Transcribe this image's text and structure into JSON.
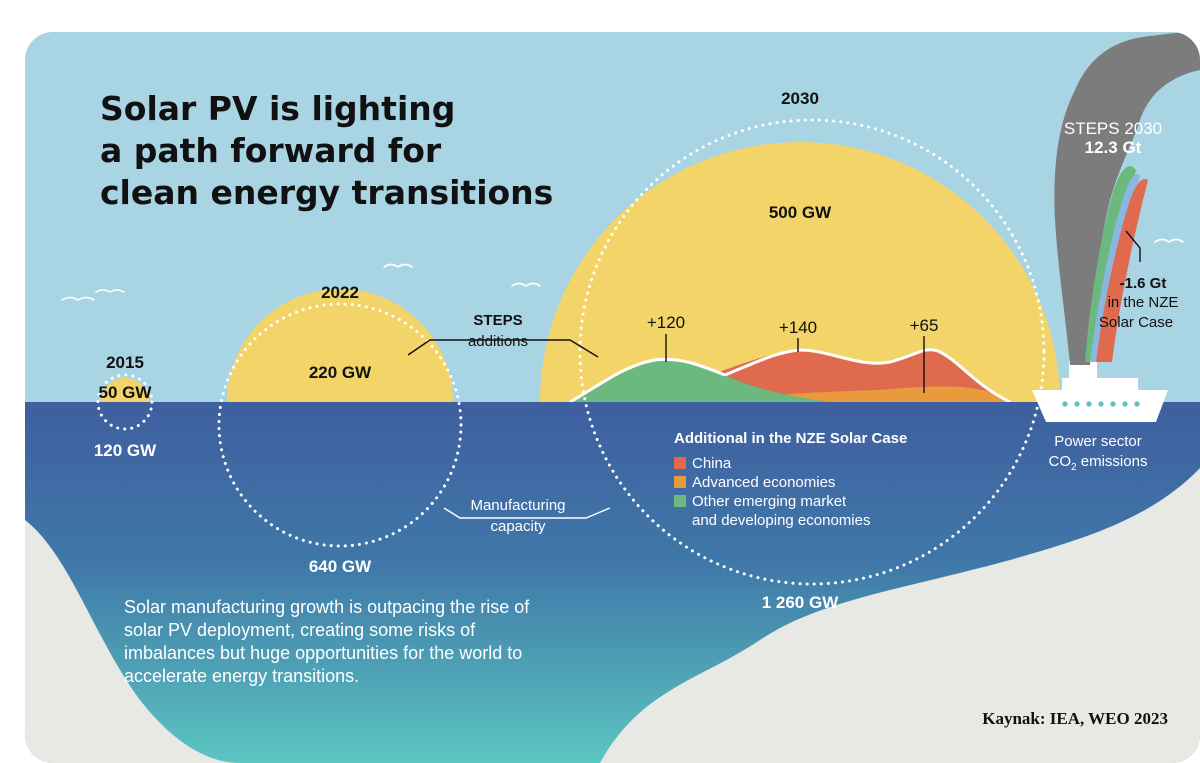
{
  "title": {
    "line1": "Solar PV is lighting",
    "line2": "a path forward for",
    "line3": "clean energy transitions"
  },
  "years": {
    "y2015": {
      "label": "2015",
      "deployment": "50 GW",
      "manufacturing": "120 GW"
    },
    "y2022": {
      "label": "2022",
      "deployment": "220 GW",
      "manufacturing": "640 GW"
    },
    "y2030": {
      "label": "2030",
      "deployment": "500 GW",
      "manufacturing": "1 260 GW",
      "additions": {
        "other_emerging": "+120",
        "china": "+140",
        "advanced": "+65"
      }
    }
  },
  "annotations": {
    "steps_line1": "STEPS",
    "steps_line2": "additions",
    "manufacturing_line1": "Manufacturing",
    "manufacturing_line2": "capacity"
  },
  "legend": {
    "title": "Additional in the NZE Solar Case",
    "items": [
      {
        "label": "China",
        "color": "#E06A4E"
      },
      {
        "label": "Advanced economies",
        "color": "#E89A3C"
      },
      {
        "label": "Other emerging market",
        "label2": "and developing economies",
        "color": "#6BB97F"
      }
    ]
  },
  "emissions": {
    "steps_label": "STEPS 2030",
    "steps_value": "12.3 Gt",
    "nze_value": "-1.6 Gt",
    "nze_line2": "in the NZE",
    "nze_line3": "Solar Case",
    "sector_line1": "Power sector",
    "sector_line2": "CO",
    "sector_sub": "2",
    "sector_line2_end": " emissions"
  },
  "body_text": {
    "line1": "Solar manufacturing growth is outpacing the rise of",
    "line2": "solar PV deployment, creating some risks of",
    "line3": "imbalances but huge opportunities for the world to",
    "line4": "accelerate energy transitions."
  },
  "source": "Kaynak: IEA, WEO 2023",
  "colors": {
    "sky": "#A9D4E3",
    "sea_top": "#3F5FA0",
    "sea_bottom": "#5CC0C0",
    "sun": "#F2D468",
    "land": "#E8E8E4",
    "smoke": "#7C7C7C"
  }
}
